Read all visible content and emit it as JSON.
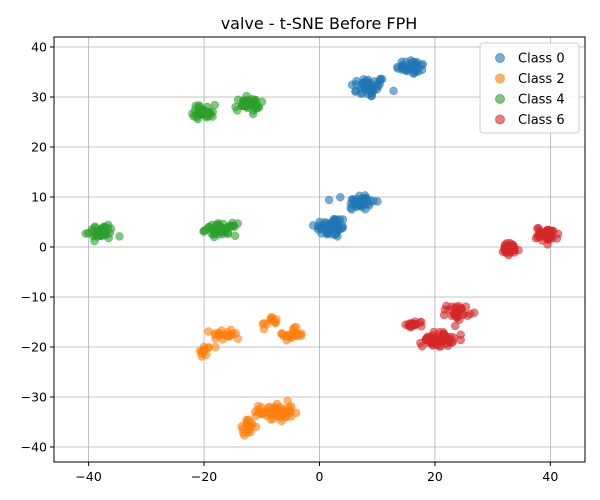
{
  "chart_data": {
    "type": "scatter",
    "title": "valve - t-SNE Before FPH",
    "xlabel": "",
    "ylabel": "",
    "xlim": [
      -46,
      46
    ],
    "ylim": [
      -43,
      42
    ],
    "xticks": [
      -40,
      -20,
      0,
      20,
      40
    ],
    "yticks": [
      -40,
      -30,
      -20,
      -10,
      0,
      10,
      20,
      30,
      40
    ],
    "grid": true,
    "legend_position": "top-right",
    "series": [
      {
        "name": "Class 0",
        "color": "#1f77b4",
        "clusters": [
          {
            "cx": 8.5,
            "cy": 32,
            "sx": 2.6,
            "sy": 1.8,
            "n": 45
          },
          {
            "cx": 16,
            "cy": 36,
            "sx": 2.2,
            "sy": 1.3,
            "n": 35
          },
          {
            "cx": 7,
            "cy": 9,
            "sx": 2.2,
            "sy": 1.4,
            "n": 40
          },
          {
            "cx": 2,
            "cy": 4,
            "sx": 2.4,
            "sy": 1.8,
            "n": 50
          }
        ]
      },
      {
        "name": "Class 2",
        "color": "#ff7f0e",
        "clusters": [
          {
            "cx": -16,
            "cy": -17.5,
            "sx": 2.2,
            "sy": 1.0,
            "n": 22
          },
          {
            "cx": -20,
            "cy": -21,
            "sx": 0.8,
            "sy": 1.2,
            "n": 12
          },
          {
            "cx": -8.5,
            "cy": -15,
            "sx": 1.2,
            "sy": 1.0,
            "n": 12
          },
          {
            "cx": -5,
            "cy": -17.5,
            "sx": 1.8,
            "sy": 1.0,
            "n": 22
          },
          {
            "cx": -7.5,
            "cy": -33,
            "sx": 2.4,
            "sy": 1.6,
            "n": 55
          },
          {
            "cx": -12.5,
            "cy": -36,
            "sx": 1.2,
            "sy": 1.2,
            "n": 20
          }
        ]
      },
      {
        "name": "Class 4",
        "color": "#2ca02c",
        "clusters": [
          {
            "cx": -20,
            "cy": 27,
            "sx": 1.6,
            "sy": 1.2,
            "n": 35
          },
          {
            "cx": -12.5,
            "cy": 28.5,
            "sx": 1.8,
            "sy": 1.1,
            "n": 40
          },
          {
            "cx": -38,
            "cy": 3,
            "sx": 2.0,
            "sy": 1.3,
            "n": 35
          },
          {
            "cx": -17,
            "cy": 3.5,
            "sx": 2.2,
            "sy": 1.0,
            "n": 45
          }
        ]
      },
      {
        "name": "Class 6",
        "color": "#d62728",
        "clusters": [
          {
            "cx": 33,
            "cy": -0.5,
            "sx": 1.4,
            "sy": 1.1,
            "n": 35
          },
          {
            "cx": 39.5,
            "cy": 2.5,
            "sx": 1.6,
            "sy": 1.2,
            "n": 40
          },
          {
            "cx": 20.5,
            "cy": -18.5,
            "sx": 2.2,
            "sy": 1.2,
            "n": 60
          },
          {
            "cx": 16.5,
            "cy": -15.5,
            "sx": 1.3,
            "sy": 0.6,
            "n": 18
          },
          {
            "cx": 24,
            "cy": -13,
            "sx": 1.6,
            "sy": 1.2,
            "n": 30
          }
        ]
      }
    ]
  }
}
